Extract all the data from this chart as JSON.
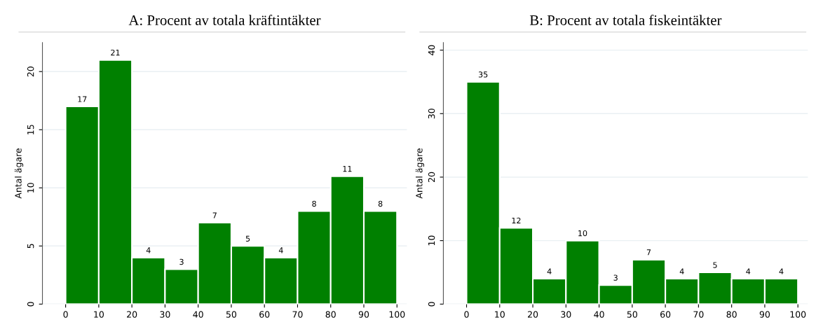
{
  "chart_data": [
    {
      "type": "histogram",
      "title": "A: Procent av totala kräftintäkter",
      "ylabel": "Antal ägare",
      "bins": [
        0,
        10,
        20,
        30,
        40,
        50,
        60,
        70,
        80,
        90,
        100
      ],
      "values": [
        17,
        21,
        4,
        3,
        7,
        5,
        4,
        8,
        11,
        8
      ],
      "color": "#008000",
      "data_labels": true,
      "grid": "y",
      "xlim": [
        -7,
        103
      ],
      "xticks": [
        0,
        10,
        20,
        30,
        40,
        50,
        60,
        70,
        80,
        90,
        100
      ],
      "ylim": [
        0,
        22.5
      ],
      "yticks": [
        0,
        5,
        10,
        15,
        20
      ]
    },
    {
      "type": "histogram",
      "title": "B: Procent av totala fiskeintäkter",
      "ylabel": "Antal ägare",
      "bins": [
        0,
        10,
        20,
        30,
        40,
        50,
        60,
        70,
        80,
        90,
        100
      ],
      "values": [
        35,
        12,
        4,
        10,
        3,
        7,
        4,
        5,
        4,
        4
      ],
      "color": "#008000",
      "data_labels": true,
      "grid": "y",
      "xlim": [
        -7,
        103
      ],
      "xticks": [
        0,
        10,
        20,
        30,
        40,
        50,
        60,
        70,
        80,
        90,
        100
      ],
      "ylim": [
        0,
        41.2
      ],
      "yticks": [
        0,
        10,
        20,
        30,
        40
      ]
    }
  ]
}
